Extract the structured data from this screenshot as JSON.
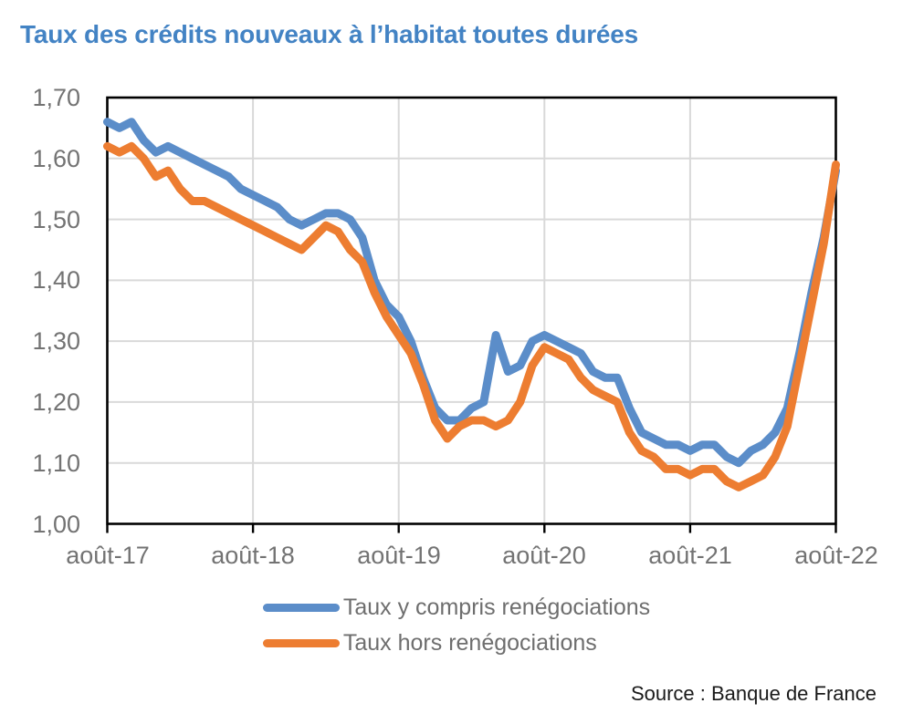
{
  "title": "Taux des crédits nouveaux à l’habitat toutes durées",
  "source": "Source : Banque de France",
  "colors": {
    "title": "#4383c4",
    "series_blue": "#5b8dc9",
    "series_orange": "#ed7d31",
    "axis_text": "#737373",
    "legend_text": "#6e6e6e",
    "gridline": "#d9d9d9",
    "frame": "#000000",
    "source_text": "#1a1a1a",
    "background": "#ffffff"
  },
  "chart_data": {
    "type": "line",
    "title": "Taux des crédits nouveaux à l’habitat toutes durées",
    "xlabel": "",
    "ylabel": "",
    "ylim": [
      1.0,
      1.7
    ],
    "y_tick_step": 0.1,
    "grid": true,
    "legend_position": "bottom",
    "x_tick_labels": [
      "août-17",
      "août-18",
      "août-19",
      "août-20",
      "août-21",
      "août-22"
    ],
    "y_tick_labels": [
      "1,70",
      "1,60",
      "1,50",
      "1,40",
      "1,30",
      "1,20",
      "1,10",
      "1,00"
    ],
    "x": [
      "août-17",
      "sept-17",
      "oct-17",
      "nov-17",
      "déc-17",
      "janv-18",
      "févr-18",
      "mars-18",
      "avr-18",
      "mai-18",
      "juin-18",
      "juil-18",
      "août-18",
      "sept-18",
      "oct-18",
      "nov-18",
      "déc-18",
      "janv-19",
      "févr-19",
      "mars-19",
      "avr-19",
      "mai-19",
      "juin-19",
      "juil-19",
      "août-19",
      "sept-19",
      "oct-19",
      "nov-19",
      "déc-19",
      "janv-20",
      "févr-20",
      "mars-20",
      "avr-20",
      "mai-20",
      "juin-20",
      "juil-20",
      "août-20",
      "sept-20",
      "oct-20",
      "nov-20",
      "déc-20",
      "janv-21",
      "févr-21",
      "mars-21",
      "avr-21",
      "mai-21",
      "juin-21",
      "juil-21",
      "août-21",
      "sept-21",
      "oct-21",
      "nov-21",
      "déc-21",
      "janv-22",
      "févr-22",
      "mars-22",
      "avr-22",
      "mai-22",
      "juin-22",
      "juil-22",
      "août-22"
    ],
    "series": [
      {
        "id": "taux-y-compris-renegociations",
        "name": "Taux y compris renégociations",
        "color": "#5b8dc9",
        "values": [
          1.66,
          1.65,
          1.66,
          1.63,
          1.61,
          1.62,
          1.61,
          1.6,
          1.59,
          1.58,
          1.57,
          1.55,
          1.54,
          1.53,
          1.52,
          1.5,
          1.49,
          1.5,
          1.51,
          1.51,
          1.5,
          1.47,
          1.4,
          1.36,
          1.34,
          1.3,
          1.24,
          1.19,
          1.17,
          1.17,
          1.19,
          1.2,
          1.31,
          1.25,
          1.26,
          1.3,
          1.31,
          1.3,
          1.29,
          1.28,
          1.25,
          1.24,
          1.24,
          1.19,
          1.15,
          1.14,
          1.13,
          1.13,
          1.12,
          1.13,
          1.13,
          1.11,
          1.1,
          1.12,
          1.13,
          1.15,
          1.19,
          1.28,
          1.38,
          1.47,
          1.58
        ]
      },
      {
        "id": "taux-hors-renegociations",
        "name": "Taux hors renégociations",
        "color": "#ed7d31",
        "values": [
          1.62,
          1.61,
          1.62,
          1.6,
          1.57,
          1.58,
          1.55,
          1.53,
          1.53,
          1.52,
          1.51,
          1.5,
          1.49,
          1.48,
          1.47,
          1.46,
          1.45,
          1.47,
          1.49,
          1.48,
          1.45,
          1.43,
          1.38,
          1.34,
          1.31,
          1.28,
          1.23,
          1.17,
          1.14,
          1.16,
          1.17,
          1.17,
          1.16,
          1.17,
          1.2,
          1.26,
          1.29,
          1.28,
          1.27,
          1.24,
          1.22,
          1.21,
          1.2,
          1.15,
          1.12,
          1.11,
          1.09,
          1.09,
          1.08,
          1.09,
          1.09,
          1.07,
          1.06,
          1.07,
          1.08,
          1.11,
          1.16,
          1.26,
          1.36,
          1.46,
          1.59
        ]
      }
    ]
  }
}
